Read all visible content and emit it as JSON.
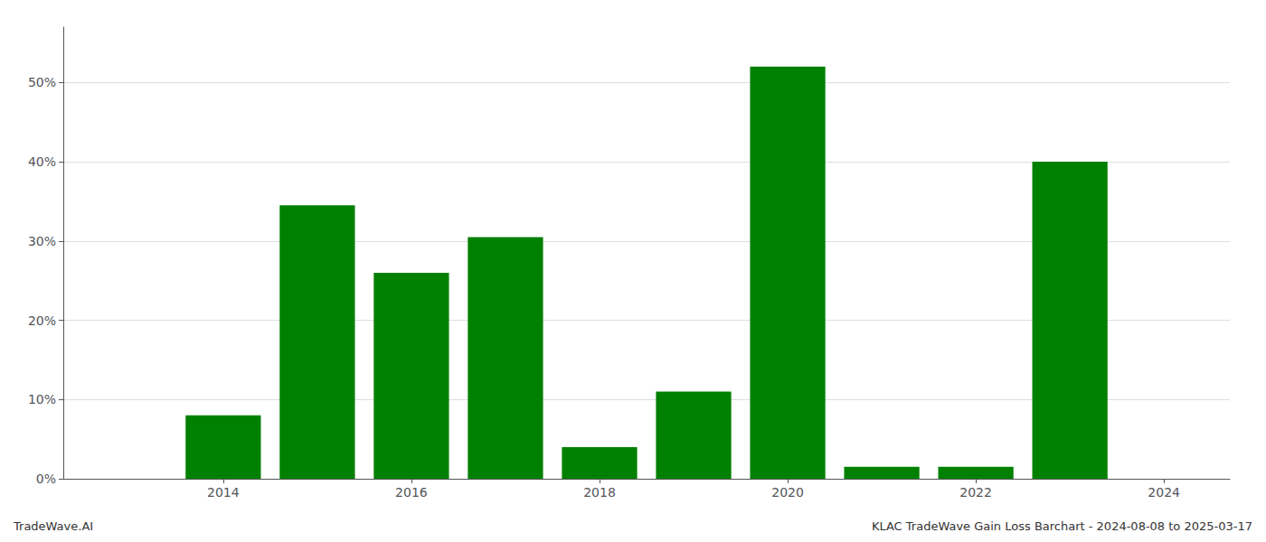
{
  "chart_data": {
    "type": "bar",
    "x": [
      2013,
      2014,
      2015,
      2016,
      2017,
      2018,
      2019,
      2020,
      2021,
      2022,
      2023,
      2024
    ],
    "values": [
      0.0,
      8.0,
      34.5,
      26.0,
      30.5,
      4.0,
      11.0,
      52.0,
      1.5,
      1.5,
      40.0,
      0.0
    ],
    "color": "#008000",
    "xlim": [
      2012.3,
      2024.7
    ],
    "xticks": [
      2014,
      2016,
      2018,
      2020,
      2022,
      2024
    ],
    "ylim": [
      0,
      57
    ],
    "yticks": [
      {
        "value": 0,
        "label": "0%"
      },
      {
        "value": 10,
        "label": "10%"
      },
      {
        "value": 20,
        "label": "20%"
      },
      {
        "value": 30,
        "label": "30%"
      },
      {
        "value": 40,
        "label": "40%"
      },
      {
        "value": 50,
        "label": "50%"
      }
    ],
    "grid": true,
    "annotations": [
      "TradeWave.AI",
      "KLAC TradeWave Gain Loss Barchart - 2024-08-08 to 2025-03-17"
    ]
  }
}
